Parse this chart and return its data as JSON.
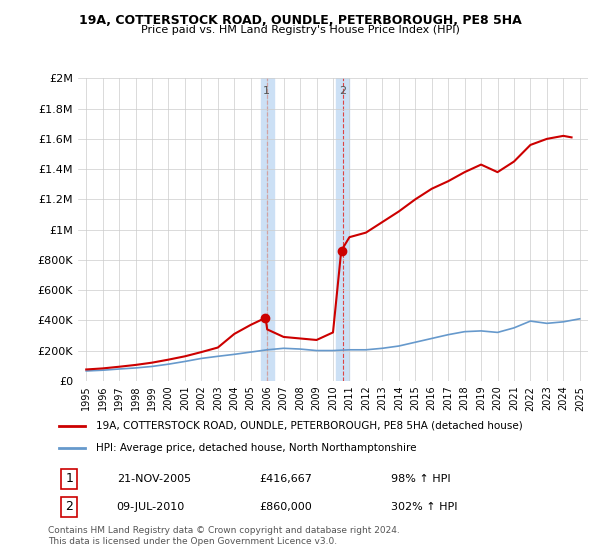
{
  "title": "19A, COTTERSTOCK ROAD, OUNDLE, PETERBOROUGH, PE8 5HA",
  "subtitle": "Price paid vs. HM Land Registry's House Price Index (HPI)",
  "background_color": "#ffffff",
  "plot_bg_color": "#ffffff",
  "grid_color": "#cccccc",
  "ylim": [
    0,
    2000000
  ],
  "yticks": [
    0,
    200000,
    400000,
    600000,
    800000,
    1000000,
    1200000,
    1400000,
    1600000,
    1800000,
    2000000
  ],
  "ytick_labels": [
    "£0",
    "£200K",
    "£400K",
    "£600K",
    "£800K",
    "£1M",
    "£1.2M",
    "£1.4M",
    "£1.6M",
    "£1.8M",
    "£2M"
  ],
  "xlim_start": 1994.5,
  "xlim_end": 2025.5,
  "xtick_years": [
    1995,
    1996,
    1997,
    1998,
    1999,
    2000,
    2001,
    2002,
    2003,
    2004,
    2005,
    2006,
    2007,
    2008,
    2009,
    2010,
    2011,
    2012,
    2013,
    2014,
    2015,
    2016,
    2017,
    2018,
    2019,
    2020,
    2021,
    2022,
    2023,
    2024,
    2025
  ],
  "sale1_x": 2005.896,
  "sale1_y": 416667,
  "sale1_label": "1",
  "sale2_x": 2010.521,
  "sale2_y": 860000,
  "sale2_label": "2",
  "shade_x1_start": 2005.6,
  "shade_x1_end": 2006.4,
  "shade_x2_start": 2010.2,
  "shade_x2_end": 2011.0,
  "shade_color": "#cce0f5",
  "red_line_color": "#cc0000",
  "blue_line_color": "#6699cc",
  "red_x": [
    1995,
    1996,
    1997,
    1998,
    1999,
    2000,
    2001,
    2002,
    2003,
    2004,
    2005,
    2005.9,
    2006,
    2007,
    2008,
    2009,
    2010,
    2010.5,
    2011,
    2012,
    2013,
    2014,
    2015,
    2016,
    2017,
    2018,
    2019,
    2020,
    2021,
    2022,
    2023,
    2024,
    2024.5
  ],
  "red_y": [
    75000,
    82000,
    93000,
    105000,
    120000,
    140000,
    162000,
    190000,
    220000,
    310000,
    370000,
    416667,
    340000,
    290000,
    280000,
    270000,
    320000,
    860000,
    950000,
    980000,
    1050000,
    1120000,
    1200000,
    1270000,
    1320000,
    1380000,
    1430000,
    1380000,
    1450000,
    1560000,
    1600000,
    1620000,
    1610000
  ],
  "blue_x": [
    1995,
    1996,
    1997,
    1998,
    1999,
    2000,
    2001,
    2002,
    2003,
    2004,
    2005,
    2006,
    2007,
    2008,
    2009,
    2010,
    2011,
    2012,
    2013,
    2014,
    2015,
    2016,
    2017,
    2018,
    2019,
    2020,
    2021,
    2022,
    2023,
    2024,
    2025
  ],
  "blue_y": [
    65000,
    70000,
    78000,
    85000,
    95000,
    110000,
    128000,
    148000,
    162000,
    175000,
    190000,
    205000,
    215000,
    210000,
    200000,
    200000,
    205000,
    205000,
    215000,
    230000,
    255000,
    280000,
    305000,
    325000,
    330000,
    320000,
    350000,
    395000,
    380000,
    390000,
    410000
  ],
  "legend_red_label": "19A, COTTERSTOCK ROAD, OUNDLE, PETERBOROUGH, PE8 5HA (detached house)",
  "legend_blue_label": "HPI: Average price, detached house, North Northamptonshire",
  "annotation1_date": "21-NOV-2005",
  "annotation1_price": "£416,667",
  "annotation1_hpi": "98% ↑ HPI",
  "annotation2_date": "09-JUL-2010",
  "annotation2_price": "£860,000",
  "annotation2_hpi": "302% ↑ HPI",
  "footer": "Contains HM Land Registry data © Crown copyright and database right 2024.\nThis data is licensed under the Open Government Licence v3.0."
}
